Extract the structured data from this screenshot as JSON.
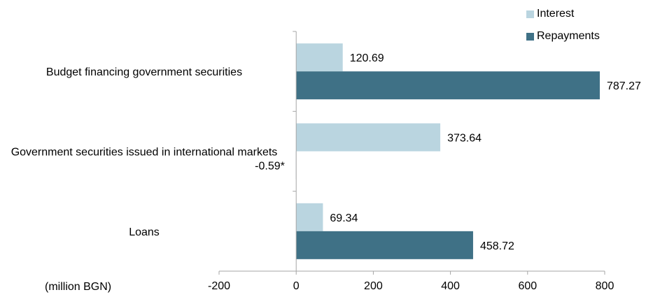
{
  "chart_data": {
    "type": "bar",
    "orientation": "horizontal",
    "categories": [
      "Budget financing government securities",
      "Government securities issued in international markets",
      "Loans"
    ],
    "series": [
      {
        "name": "Interest",
        "color": "#bad5e0",
        "values": [
          120.69,
          373.64,
          69.34
        ],
        "labels": [
          "120.69",
          "373.64",
          "69.34"
        ]
      },
      {
        "name": "Repayments",
        "color": "#3f7186",
        "values": [
          787.27,
          -0.59,
          458.72
        ],
        "labels": [
          "787.27",
          "-0.59*",
          "458.72"
        ]
      }
    ],
    "xlim": [
      -200,
      800
    ],
    "xticks": [
      "-200",
      "0",
      "200",
      "400",
      "600",
      "800"
    ],
    "unit_label": "(million BGN)",
    "legend_position": "top-right",
    "grid": false
  }
}
